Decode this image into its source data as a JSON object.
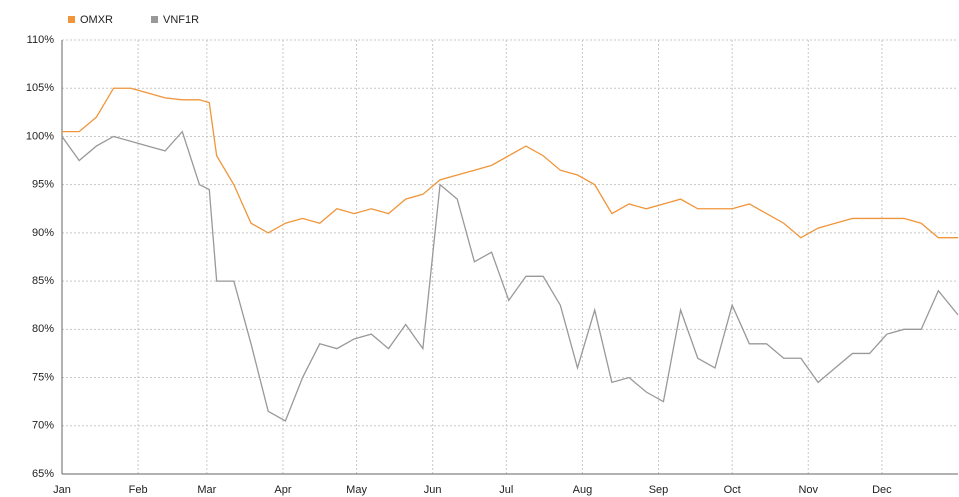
{
  "chart_data": {
    "type": "line",
    "x": [
      0,
      7,
      14,
      21,
      28,
      35,
      42,
      49,
      56,
      60,
      63,
      70,
      77,
      84,
      91,
      98,
      105,
      112,
      119,
      126,
      133,
      140,
      147,
      154,
      161,
      168,
      175,
      182,
      189,
      196,
      203,
      210,
      217,
      224,
      231,
      238,
      245,
      252,
      259,
      266,
      273,
      280,
      287,
      294,
      301,
      308,
      315,
      322,
      329,
      336,
      343,
      350,
      357,
      365
    ],
    "series": [
      {
        "name": "OMXR",
        "color": "#f0953a",
        "values": [
          100.5,
          100.5,
          102,
          105,
          105,
          104.5,
          104,
          103.8,
          103.8,
          103.5,
          98,
          95,
          91,
          90,
          91,
          91.5,
          91,
          92.5,
          92,
          92.5,
          92,
          93.5,
          94,
          95.5,
          96,
          96.5,
          97,
          98,
          99,
          98,
          96.5,
          96,
          95,
          92,
          93,
          92.5,
          93,
          93.5,
          92.5,
          92.5,
          92.5,
          93,
          92,
          91,
          89.5,
          90.5,
          91,
          91.5,
          91.5,
          91.5,
          91.5,
          91,
          89.5,
          89.5
        ]
      },
      {
        "name": "VNF1R",
        "color": "#999999",
        "values": [
          100,
          97.5,
          99,
          100,
          99.5,
          99,
          98.5,
          100.5,
          95,
          94.5,
          85,
          85,
          78.5,
          71.5,
          70.5,
          75,
          78.5,
          78,
          79,
          79.5,
          78,
          80.5,
          78,
          95,
          93.5,
          87,
          88,
          83,
          85.5,
          85.5,
          82.5,
          76,
          82,
          74.5,
          75,
          73.5,
          72.5,
          82,
          77,
          76,
          82.5,
          78.5,
          78.5,
          77,
          77,
          74.5,
          76,
          77.5,
          77.5,
          79.5,
          80,
          80,
          84,
          81.5
        ]
      }
    ],
    "xlim": [
      0,
      365
    ],
    "xticks": [
      {
        "value": 0,
        "label": "Jan"
      },
      {
        "value": 31,
        "label": "Feb"
      },
      {
        "value": 59,
        "label": "Mar"
      },
      {
        "value": 90,
        "label": "Apr"
      },
      {
        "value": 120,
        "label": "May"
      },
      {
        "value": 151,
        "label": "Jun"
      },
      {
        "value": 181,
        "label": "Jul"
      },
      {
        "value": 212,
        "label": "Aug"
      },
      {
        "value": 243,
        "label": "Sep"
      },
      {
        "value": 273,
        "label": "Oct"
      },
      {
        "value": 304,
        "label": "Nov"
      },
      {
        "value": 334,
        "label": "Dec"
      }
    ],
    "ylim": [
      65,
      110
    ],
    "yticks": [
      {
        "value": 65,
        "label": "65%"
      },
      {
        "value": 70,
        "label": "70%"
      },
      {
        "value": 75,
        "label": "75%"
      },
      {
        "value": 80,
        "label": "80%"
      },
      {
        "value": 85,
        "label": "85%"
      },
      {
        "value": 90,
        "label": "90%"
      },
      {
        "value": 95,
        "label": "95%"
      },
      {
        "value": 100,
        "label": "100%"
      },
      {
        "value": 105,
        "label": "105%"
      },
      {
        "value": 110,
        "label": "110%"
      }
    ],
    "grid": true
  }
}
